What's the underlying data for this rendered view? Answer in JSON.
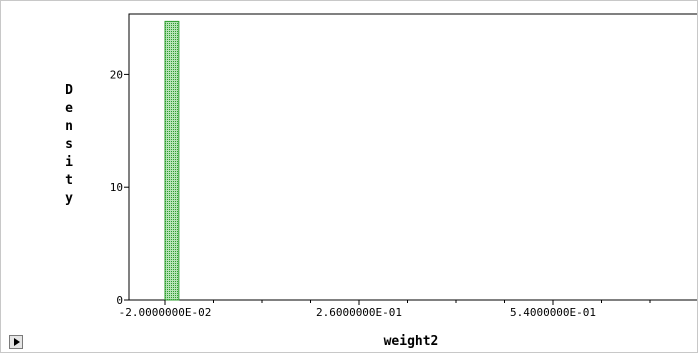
{
  "chart_data": {
    "type": "bar",
    "title": "",
    "xlabel": "weight2",
    "ylabel": "Density",
    "xlim": [
      -0.02,
      0.74
    ],
    "ylim": [
      0,
      25
    ],
    "xticks": [
      -0.02,
      0.26,
      0.54
    ],
    "xtick_labels": [
      "-2.0000000E-02",
      "2.6000000E-01",
      "5.4000000E-01"
    ],
    "yticks": [
      0,
      10,
      20
    ],
    "ytick_labels": [
      "0",
      "10",
      "20"
    ],
    "bins": [
      {
        "x0": -0.02,
        "x1": 0.0,
        "value": 24.7
      }
    ],
    "bar_color": "#2f9e2f",
    "bar_fill": "#8fd28f",
    "grid": false
  },
  "controls": {
    "play_icon": "play-icon"
  }
}
